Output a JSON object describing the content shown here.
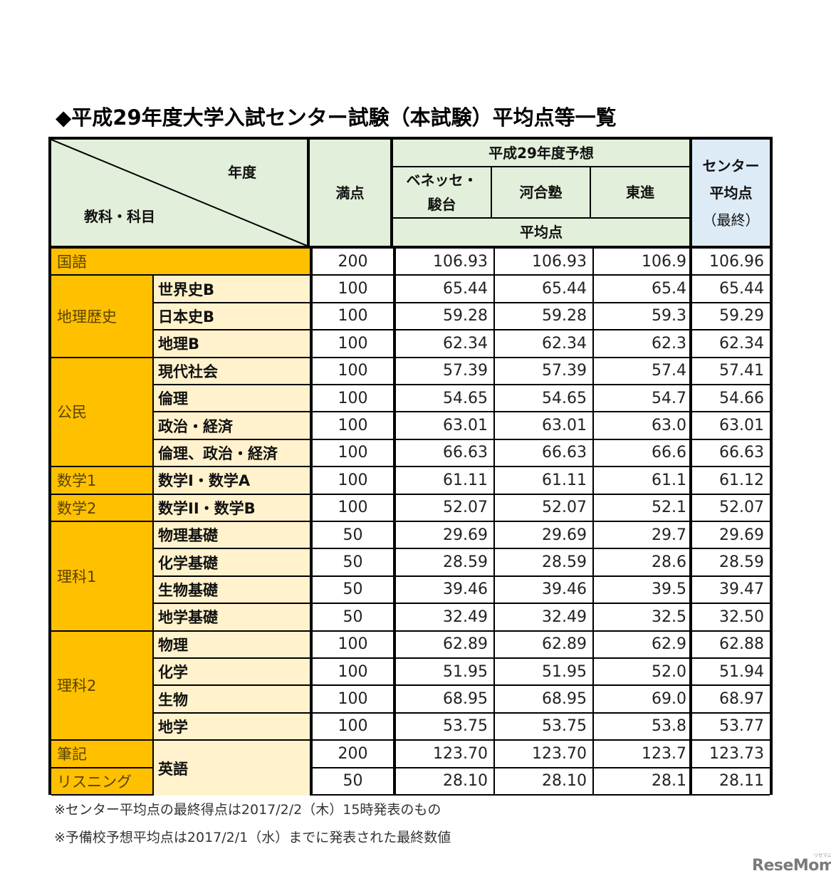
{
  "title": "◆平成29年度大学入試センター試験（本試験）平均点等一覧",
  "header": {
    "year_label": "年度",
    "subject_label": "教科・科目",
    "max_score": "満点",
    "forecast_group": "平成29年度予想",
    "benesse_line1": "ベネッセ・",
    "benesse_line2": "駿台",
    "kawai": "河合塾",
    "toshin": "東進",
    "average_label": "平均点",
    "center_line1": "センター",
    "center_line2": "平均点",
    "center_line3": "（最終）"
  },
  "rows": [
    {
      "category": "国語",
      "subject": "",
      "max": "200",
      "benesse": "106.93",
      "kawai": "106.93",
      "toshin": "106.9",
      "center": "106.96"
    },
    {
      "category": "地理歴史",
      "subject": "世界史B",
      "max": "100",
      "benesse": "65.44",
      "kawai": "65.44",
      "toshin": "65.4",
      "center": "65.44"
    },
    {
      "category": "地理歴史",
      "subject": "日本史B",
      "max": "100",
      "benesse": "59.28",
      "kawai": "59.28",
      "toshin": "59.3",
      "center": "59.29"
    },
    {
      "category": "地理歴史",
      "subject": "地理B",
      "max": "100",
      "benesse": "62.34",
      "kawai": "62.34",
      "toshin": "62.3",
      "center": "62.34"
    },
    {
      "category": "公民",
      "subject": "現代社会",
      "max": "100",
      "benesse": "57.39",
      "kawai": "57.39",
      "toshin": "57.4",
      "center": "57.41"
    },
    {
      "category": "公民",
      "subject": "倫理",
      "max": "100",
      "benesse": "54.65",
      "kawai": "54.65",
      "toshin": "54.7",
      "center": "54.66"
    },
    {
      "category": "公民",
      "subject": "政治・経済",
      "max": "100",
      "benesse": "63.01",
      "kawai": "63.01",
      "toshin": "63.0",
      "center": "63.01"
    },
    {
      "category": "公民",
      "subject": "倫理、政治・経済",
      "max": "100",
      "benesse": "66.63",
      "kawai": "66.63",
      "toshin": "66.6",
      "center": "66.63"
    },
    {
      "category": "数学1",
      "subject": "数学I・数学A",
      "max": "100",
      "benesse": "61.11",
      "kawai": "61.11",
      "toshin": "61.1",
      "center": "61.12"
    },
    {
      "category": "数学2",
      "subject": "数学II・数学B",
      "max": "100",
      "benesse": "52.07",
      "kawai": "52.07",
      "toshin": "52.1",
      "center": "52.07"
    },
    {
      "category": "理科1",
      "subject": "物理基礎",
      "max": "50",
      "benesse": "29.69",
      "kawai": "29.69",
      "toshin": "29.7",
      "center": "29.69"
    },
    {
      "category": "理科1",
      "subject": "化学基礎",
      "max": "50",
      "benesse": "28.59",
      "kawai": "28.59",
      "toshin": "28.6",
      "center": "28.59"
    },
    {
      "category": "理科1",
      "subject": "生物基礎",
      "max": "50",
      "benesse": "39.46",
      "kawai": "39.46",
      "toshin": "39.5",
      "center": "39.47"
    },
    {
      "category": "理科1",
      "subject": "地学基礎",
      "max": "50",
      "benesse": "32.49",
      "kawai": "32.49",
      "toshin": "32.5",
      "center": "32.50"
    },
    {
      "category": "理科2",
      "subject": "物理",
      "max": "100",
      "benesse": "62.89",
      "kawai": "62.89",
      "toshin": "62.9",
      "center": "62.88"
    },
    {
      "category": "理科2",
      "subject": "化学",
      "max": "100",
      "benesse": "51.95",
      "kawai": "51.95",
      "toshin": "52.0",
      "center": "51.94"
    },
    {
      "category": "理科2",
      "subject": "生物",
      "max": "100",
      "benesse": "68.95",
      "kawai": "68.95",
      "toshin": "69.0",
      "center": "68.97"
    },
    {
      "category": "理科2",
      "subject": "地学",
      "max": "100",
      "benesse": "53.75",
      "kawai": "53.75",
      "toshin": "53.8",
      "center": "53.77"
    },
    {
      "category": "筆記",
      "subject": "英語",
      "max": "200",
      "benesse": "123.70",
      "kawai": "123.70",
      "toshin": "123.7",
      "center": "123.73"
    },
    {
      "category": "リスニング",
      "subject": "英語",
      "max": "50",
      "benesse": "28.10",
      "kawai": "28.10",
      "toshin": "28.1",
      "center": "28.11"
    }
  ],
  "categories": {
    "kokugo": "国語",
    "chireki": "地理歴史",
    "komin": "公民",
    "sugaku1": "数学1",
    "sugaku2": "数学2",
    "rika1": "理科1",
    "rika2": "理科2",
    "hikki": "筆記",
    "listening": "リスニング",
    "eigo": "英語"
  },
  "notes": [
    "※センター平均点の最終得点は2017/2/2（木）15時発表のもの",
    "※予備校予想平均点は2017/2/1（水）までに発表された最終数値"
  ],
  "logo": {
    "text": "ReseMom",
    "kana": "リセマム"
  },
  "colors": {
    "header_green": "#e2efda",
    "header_blue": "#ddebf7",
    "category_orange": "#ffc000",
    "subject_cream": "#fff2cc",
    "border": "#000000"
  }
}
